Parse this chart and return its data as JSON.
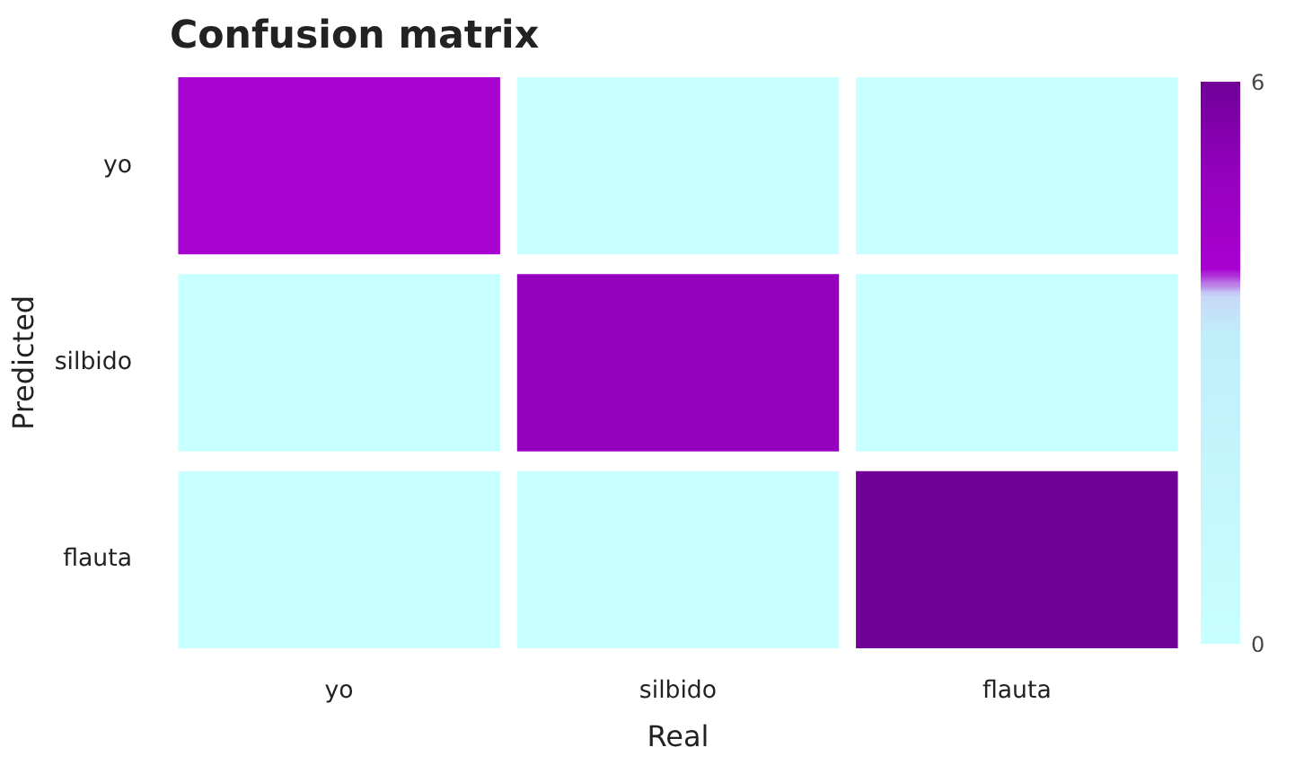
{
  "chart_data": {
    "type": "heatmap",
    "title": "Confusion matrix",
    "xlabel": "Real",
    "ylabel": "Predicted",
    "categories": [
      "yo",
      "silbido",
      "flauta"
    ],
    "y_categories": [
      "yo",
      "silbido",
      "flauta"
    ],
    "cells": [
      [
        4,
        0,
        0
      ],
      [
        0,
        5,
        0
      ],
      [
        0,
        0,
        6
      ]
    ],
    "clim": [
      0,
      6
    ],
    "cticks": [
      0,
      6
    ],
    "grid": false
  }
}
